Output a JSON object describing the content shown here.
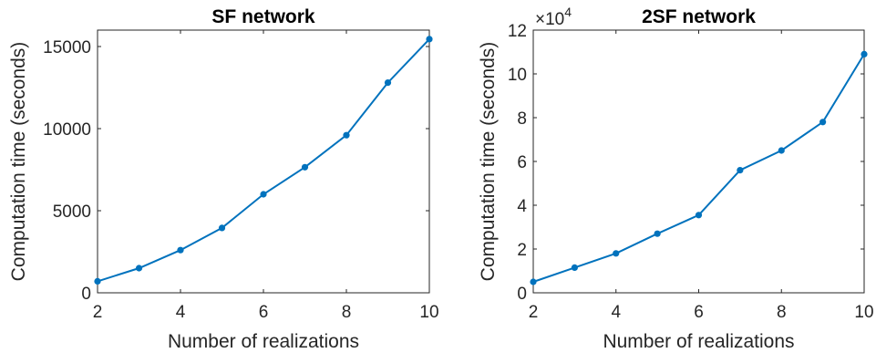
{
  "chart_data": [
    {
      "type": "line",
      "title": "SF network",
      "xlabel": "Number of realizations",
      "ylabel": "Computation time (seconds)",
      "xlim": [
        2,
        10
      ],
      "ylim": [
        0,
        16000
      ],
      "xticks": [
        2,
        4,
        6,
        8,
        10
      ],
      "yticks": [
        0,
        5000,
        10000,
        15000
      ],
      "xtick_labels": [
        "2",
        "4",
        "6",
        "8",
        "10"
      ],
      "ytick_labels": [
        "0",
        "5000",
        "10000",
        "15000"
      ],
      "exponent_label": "",
      "grid": false,
      "line_color": "#0072BD",
      "series": [
        {
          "x": [
            2,
            3,
            4,
            5,
            6,
            7,
            8,
            9,
            10
          ],
          "values": [
            700,
            1500,
            2600,
            3950,
            6000,
            7650,
            9600,
            12800,
            15450
          ]
        }
      ]
    },
    {
      "type": "line",
      "title": "2SF network",
      "xlabel": "Number of realizations",
      "ylabel": "Computation time (seconds)",
      "xlim": [
        2,
        10
      ],
      "ylim": [
        0,
        120000
      ],
      "xticks": [
        2,
        4,
        6,
        8,
        10
      ],
      "yticks": [
        0,
        20000,
        40000,
        60000,
        80000,
        100000,
        120000
      ],
      "xtick_labels": [
        "2",
        "4",
        "6",
        "8",
        "10"
      ],
      "ytick_labels": [
        "0",
        "2",
        "4",
        "6",
        "8",
        "10",
        "12"
      ],
      "exponent_label": "×10",
      "exponent_power": "4",
      "grid": false,
      "line_color": "#0072BD",
      "series": [
        {
          "x": [
            2,
            3,
            4,
            5,
            6,
            7,
            8,
            9,
            10
          ],
          "values": [
            5000,
            11500,
            18000,
            27000,
            35500,
            56000,
            65000,
            78000,
            109000
          ]
        }
      ]
    }
  ]
}
